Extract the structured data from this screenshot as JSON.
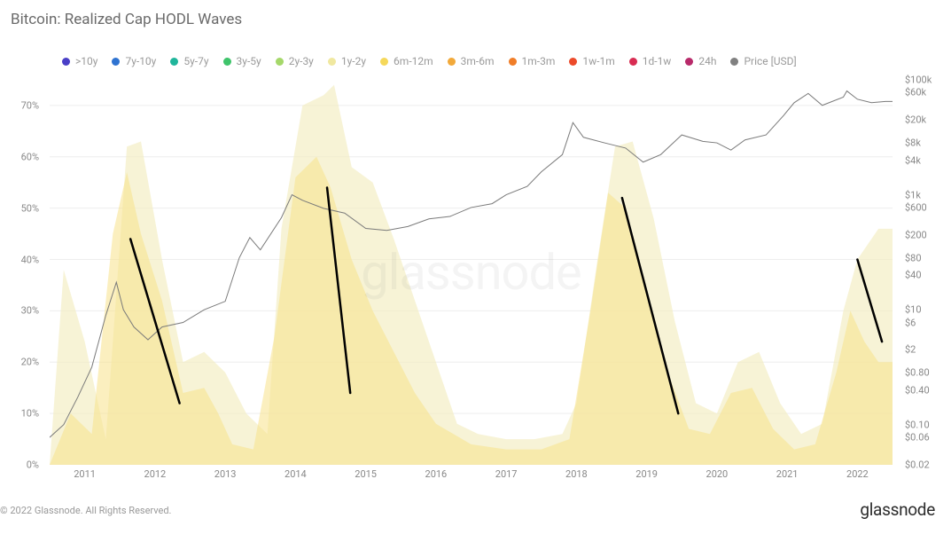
{
  "title": "Bitcoin: Realized Cap HODL Waves",
  "watermark": "glassnode",
  "copyright": "© 2022 Glassnode. All Rights Reserved.",
  "brand": "glassnode",
  "legend": {
    "items": [
      {
        "label": ">10y",
        "color": "#4a3fc7"
      },
      {
        "label": "7y-10y",
        "color": "#2f73d1"
      },
      {
        "label": "5y-7y",
        "color": "#1fb59b"
      },
      {
        "label": "3y-5y",
        "color": "#3fc46b"
      },
      {
        "label": "2y-3y",
        "color": "#a5d86a"
      },
      {
        "label": "1y-2y",
        "color": "#f0e8a0"
      },
      {
        "label": "6m-12m",
        "color": "#f5d85a"
      },
      {
        "label": "3m-6m",
        "color": "#f2a93a"
      },
      {
        "label": "1m-3m",
        "color": "#f07d28"
      },
      {
        "label": "1w-1m",
        "color": "#ec4a2a"
      },
      {
        "label": "1d-1w",
        "color": "#d82c52"
      },
      {
        "label": "24h",
        "color": "#b82a6a"
      },
      {
        "label": "Price [USD]",
        "color": "#808080"
      }
    ]
  },
  "chart": {
    "type": "area+line",
    "background_color": "#ffffff",
    "grid_color": "#eeeeee",
    "text_color": "#888888",
    "font_size": 11,
    "x_axis": {
      "domain": [
        2010.5,
        2022.5
      ],
      "ticks": [
        2011,
        2012,
        2013,
        2014,
        2015,
        2016,
        2017,
        2018,
        2019,
        2020,
        2021,
        2022
      ]
    },
    "y_left": {
      "label_suffix": "%",
      "domain": [
        0,
        75
      ],
      "ticks": [
        0,
        10,
        20,
        30,
        40,
        50,
        60,
        70
      ]
    },
    "y_right": {
      "scale": "log",
      "domain": [
        0.02,
        100000
      ],
      "ticks": [
        100000,
        60000,
        20000,
        8000,
        4000,
        1000,
        600,
        200,
        80,
        40,
        10,
        6,
        2,
        0.8,
        0.4,
        0.1,
        0.06,
        0.02
      ],
      "tick_labels": [
        "$100k",
        "$60k",
        "$20k",
        "$8k",
        "$4k",
        "$1k",
        "$600",
        "$200",
        "$80",
        "$40",
        "$10",
        "$6",
        "$2",
        "$0.80",
        "$0.40",
        "$0.10",
        "$0.06",
        "$0.02"
      ]
    },
    "area_1y2y": {
      "color": "#f2edc0",
      "points": [
        [
          2010.5,
          0
        ],
        [
          2010.7,
          38
        ],
        [
          2011.0,
          24
        ],
        [
          2011.3,
          5
        ],
        [
          2011.6,
          62
        ],
        [
          2011.8,
          63
        ],
        [
          2012.1,
          40
        ],
        [
          2012.4,
          20
        ],
        [
          2012.7,
          22
        ],
        [
          2013.0,
          18
        ],
        [
          2013.3,
          10
        ],
        [
          2013.6,
          6
        ],
        [
          2013.8,
          46
        ],
        [
          2014.1,
          70
        ],
        [
          2014.4,
          72
        ],
        [
          2014.55,
          74
        ],
        [
          2014.8,
          58
        ],
        [
          2015.1,
          55
        ],
        [
          2015.4,
          44
        ],
        [
          2015.7,
          32
        ],
        [
          2016.0,
          20
        ],
        [
          2016.3,
          8
        ],
        [
          2016.6,
          6
        ],
        [
          2017.0,
          5
        ],
        [
          2017.4,
          5
        ],
        [
          2017.8,
          6
        ],
        [
          2018.0,
          12
        ],
        [
          2018.3,
          40
        ],
        [
          2018.55,
          62
        ],
        [
          2018.8,
          63
        ],
        [
          2019.1,
          48
        ],
        [
          2019.4,
          28
        ],
        [
          2019.7,
          12
        ],
        [
          2020.0,
          10
        ],
        [
          2020.3,
          20
        ],
        [
          2020.6,
          22
        ],
        [
          2020.9,
          12
        ],
        [
          2021.2,
          6
        ],
        [
          2021.5,
          8
        ],
        [
          2021.8,
          30
        ],
        [
          2022.0,
          40
        ],
        [
          2022.3,
          46
        ],
        [
          2022.5,
          46
        ]
      ]
    },
    "area_6m12m": {
      "color": "#f7e28a",
      "points": [
        [
          2010.5,
          0
        ],
        [
          2010.8,
          10
        ],
        [
          2011.1,
          6
        ],
        [
          2011.4,
          45
        ],
        [
          2011.6,
          57
        ],
        [
          2011.8,
          45
        ],
        [
          2012.1,
          32
        ],
        [
          2012.4,
          14
        ],
        [
          2012.7,
          15
        ],
        [
          2012.9,
          10
        ],
        [
          2013.1,
          4
        ],
        [
          2013.4,
          3
        ],
        [
          2013.7,
          25
        ],
        [
          2014.0,
          56
        ],
        [
          2014.3,
          60
        ],
        [
          2014.5,
          54
        ],
        [
          2014.8,
          40
        ],
        [
          2015.1,
          30
        ],
        [
          2015.4,
          22
        ],
        [
          2015.7,
          14
        ],
        [
          2016.0,
          8
        ],
        [
          2016.5,
          4
        ],
        [
          2017.0,
          3
        ],
        [
          2017.5,
          3
        ],
        [
          2017.9,
          5
        ],
        [
          2018.2,
          30
        ],
        [
          2018.45,
          53
        ],
        [
          2018.7,
          50
        ],
        [
          2019.0,
          34
        ],
        [
          2019.3,
          18
        ],
        [
          2019.6,
          7
        ],
        [
          2019.9,
          6
        ],
        [
          2020.2,
          14
        ],
        [
          2020.5,
          15
        ],
        [
          2020.8,
          7
        ],
        [
          2021.1,
          3
        ],
        [
          2021.4,
          4
        ],
        [
          2021.7,
          18
        ],
        [
          2021.9,
          30
        ],
        [
          2022.1,
          24
        ],
        [
          2022.3,
          20
        ],
        [
          2022.5,
          20
        ]
      ]
    },
    "price_line": {
      "color": "#7a7a7a",
      "points": [
        [
          2010.5,
          0.06
        ],
        [
          2010.7,
          0.1
        ],
        [
          2010.9,
          0.3
        ],
        [
          2011.1,
          1.0
        ],
        [
          2011.3,
          8
        ],
        [
          2011.45,
          30
        ],
        [
          2011.55,
          10
        ],
        [
          2011.7,
          5
        ],
        [
          2011.9,
          3
        ],
        [
          2012.1,
          5
        ],
        [
          2012.4,
          6
        ],
        [
          2012.7,
          10
        ],
        [
          2013.0,
          14
        ],
        [
          2013.2,
          80
        ],
        [
          2013.35,
          180
        ],
        [
          2013.5,
          110
        ],
        [
          2013.8,
          400
        ],
        [
          2013.95,
          1000
        ],
        [
          2014.1,
          800
        ],
        [
          2014.4,
          580
        ],
        [
          2014.7,
          480
        ],
        [
          2015.0,
          260
        ],
        [
          2015.3,
          240
        ],
        [
          2015.6,
          280
        ],
        [
          2015.9,
          380
        ],
        [
          2016.2,
          420
        ],
        [
          2016.5,
          600
        ],
        [
          2016.8,
          700
        ],
        [
          2017.0,
          1000
        ],
        [
          2017.3,
          1400
        ],
        [
          2017.5,
          2500
        ],
        [
          2017.8,
          5000
        ],
        [
          2017.95,
          18000
        ],
        [
          2018.1,
          10000
        ],
        [
          2018.4,
          8000
        ],
        [
          2018.7,
          6500
        ],
        [
          2018.95,
          3700
        ],
        [
          2019.2,
          5000
        ],
        [
          2019.5,
          11000
        ],
        [
          2019.8,
          8500
        ],
        [
          2020.0,
          8000
        ],
        [
          2020.2,
          6000
        ],
        [
          2020.4,
          9000
        ],
        [
          2020.7,
          11000
        ],
        [
          2020.95,
          24000
        ],
        [
          2021.1,
          40000
        ],
        [
          2021.3,
          58000
        ],
        [
          2021.5,
          36000
        ],
        [
          2021.8,
          50000
        ],
        [
          2021.85,
          64000
        ],
        [
          2022.0,
          46000
        ],
        [
          2022.2,
          40000
        ],
        [
          2022.4,
          42000
        ],
        [
          2022.5,
          42000
        ]
      ]
    },
    "trend_markers": {
      "color": "#000000",
      "stroke_width": 2.5,
      "lines": [
        {
          "from": [
            2011.65,
            44
          ],
          "to": [
            2012.35,
            12
          ]
        },
        {
          "from": [
            2014.45,
            54
          ],
          "to": [
            2014.78,
            14
          ]
        },
        {
          "from": [
            2018.65,
            52
          ],
          "to": [
            2019.45,
            10
          ]
        },
        {
          "from": [
            2022.0,
            40
          ],
          "to": [
            2022.35,
            24
          ]
        }
      ]
    }
  }
}
